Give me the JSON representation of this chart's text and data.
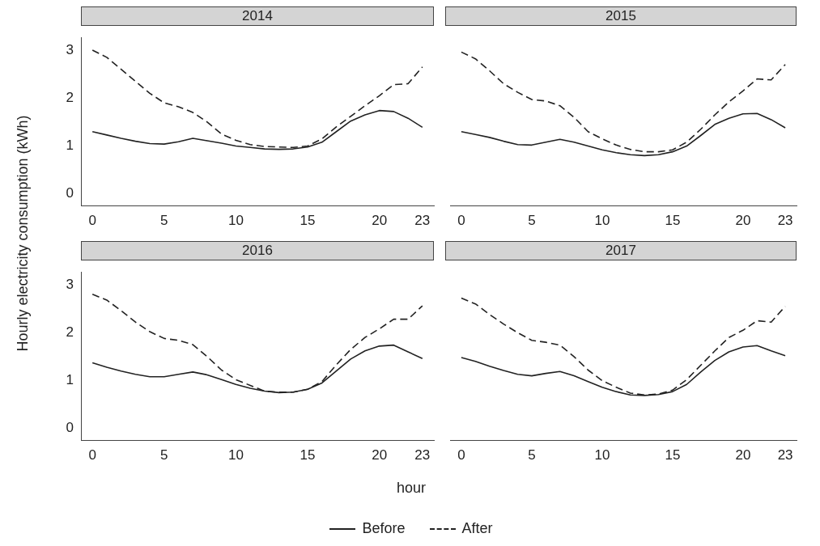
{
  "chart_data": [
    {
      "type": "line",
      "title": "2014",
      "ylabel": "Hourly electricity consumption (kWh)",
      "xlabel": "hour",
      "legend": "bottom",
      "x": [
        0,
        1,
        2,
        3,
        4,
        5,
        6,
        7,
        8,
        9,
        10,
        11,
        12,
        13,
        14,
        15,
        16,
        17,
        18,
        19,
        20,
        21,
        22,
        23
      ],
      "xlim": [
        -0.8,
        23.8
      ],
      "xticks": [
        0,
        5,
        10,
        15,
        20,
        23
      ],
      "ylim": [
        -0.25,
        3.27
      ],
      "yticks": [
        0,
        1,
        2,
        3
      ],
      "grid": false,
      "marker": "none",
      "series": [
        {
          "name": "Before",
          "color": "#222222",
          "line_style": "solid",
          "values": [
            1.3,
            1.23,
            1.16,
            1.1,
            1.05,
            1.04,
            1.09,
            1.16,
            1.11,
            1.06,
            1.0,
            0.97,
            0.94,
            0.93,
            0.94,
            0.98,
            1.08,
            1.3,
            1.52,
            1.65,
            1.74,
            1.72,
            1.58,
            1.39
          ]
        },
        {
          "name": "After",
          "color": "#222222",
          "line_style": "dashed",
          "values": [
            3.0,
            2.85,
            2.6,
            2.35,
            2.1,
            1.9,
            1.82,
            1.7,
            1.5,
            1.25,
            1.12,
            1.03,
            0.99,
            0.98,
            0.97,
            1.0,
            1.15,
            1.4,
            1.62,
            1.84,
            2.05,
            2.28,
            2.3,
            2.65
          ]
        }
      ]
    },
    {
      "type": "line",
      "title": "2015",
      "x": [
        0,
        1,
        2,
        3,
        4,
        5,
        6,
        7,
        8,
        9,
        10,
        11,
        12,
        13,
        14,
        15,
        16,
        17,
        18,
        19,
        20,
        21,
        22,
        23
      ],
      "xlim": [
        -0.8,
        23.8
      ],
      "xticks": [
        0,
        5,
        10,
        15,
        20,
        23
      ],
      "yticks": [
        0,
        1,
        2,
        3
      ],
      "tick_labels": "x",
      "grid": false,
      "marker": "none",
      "series": [
        {
          "color": "#222222",
          "line_style": "solid",
          "values": [
            1.3,
            1.24,
            1.18,
            1.1,
            1.03,
            1.02,
            1.08,
            1.14,
            1.08,
            1.0,
            0.92,
            0.86,
            0.82,
            0.8,
            0.82,
            0.88,
            1.0,
            1.22,
            1.45,
            1.58,
            1.67,
            1.68,
            1.55,
            1.38
          ]
        },
        {
          "color": "#222222",
          "line_style": "dashed",
          "values": [
            2.96,
            2.82,
            2.57,
            2.3,
            2.12,
            1.97,
            1.94,
            1.84,
            1.6,
            1.3,
            1.15,
            1.02,
            0.93,
            0.88,
            0.88,
            0.92,
            1.08,
            1.35,
            1.65,
            1.92,
            2.15,
            2.4,
            2.38,
            2.7
          ]
        }
      ]
    },
    {
      "type": "line",
      "title": "2016",
      "x": [
        0,
        1,
        2,
        3,
        4,
        5,
        6,
        7,
        8,
        9,
        10,
        11,
        12,
        13,
        14,
        15,
        16,
        17,
        18,
        19,
        20,
        21,
        22,
        23
      ],
      "xlim": [
        -0.8,
        23.8
      ],
      "xticks": [
        0,
        5,
        10,
        15,
        20,
        23
      ],
      "ylim": [
        -0.25,
        3.27
      ],
      "yticks": [
        0,
        1,
        2,
        3
      ],
      "grid": false,
      "marker": "none",
      "series": [
        {
          "color": "#222222",
          "line_style": "solid",
          "values": [
            1.37,
            1.28,
            1.2,
            1.13,
            1.08,
            1.08,
            1.13,
            1.18,
            1.12,
            1.02,
            0.92,
            0.84,
            0.78,
            0.75,
            0.76,
            0.82,
            0.95,
            1.2,
            1.45,
            1.62,
            1.72,
            1.74,
            1.6,
            1.46
          ]
        },
        {
          "color": "#222222",
          "line_style": "dashed",
          "values": [
            2.8,
            2.68,
            2.46,
            2.22,
            2.02,
            1.88,
            1.84,
            1.75,
            1.5,
            1.22,
            1.02,
            0.9,
            0.78,
            0.76,
            0.76,
            0.82,
            0.98,
            1.33,
            1.65,
            1.9,
            2.08,
            2.28,
            2.28,
            2.56
          ]
        }
      ]
    },
    {
      "type": "line",
      "title": "2017",
      "x": [
        0,
        1,
        2,
        3,
        4,
        5,
        6,
        7,
        8,
        9,
        10,
        11,
        12,
        13,
        14,
        15,
        16,
        17,
        18,
        19,
        20,
        21,
        22,
        23
      ],
      "xlim": [
        -0.8,
        23.8
      ],
      "xticks": [
        0,
        5,
        10,
        15,
        20,
        23
      ],
      "yticks": [
        0,
        1,
        2,
        3
      ],
      "tick_labels": "x",
      "grid": false,
      "marker": "none",
      "series": [
        {
          "color": "#222222",
          "line_style": "solid",
          "values": [
            1.48,
            1.4,
            1.3,
            1.21,
            1.13,
            1.1,
            1.15,
            1.19,
            1.1,
            0.98,
            0.86,
            0.77,
            0.7,
            0.69,
            0.71,
            0.77,
            0.92,
            1.18,
            1.42,
            1.6,
            1.7,
            1.73,
            1.62,
            1.52
          ]
        },
        {
          "color": "#222222",
          "line_style": "dashed",
          "values": [
            2.72,
            2.6,
            2.38,
            2.18,
            2.0,
            1.84,
            1.8,
            1.74,
            1.5,
            1.22,
            1.0,
            0.86,
            0.74,
            0.7,
            0.72,
            0.8,
            1.02,
            1.32,
            1.62,
            1.9,
            2.05,
            2.25,
            2.22,
            2.55
          ]
        }
      ]
    }
  ]
}
